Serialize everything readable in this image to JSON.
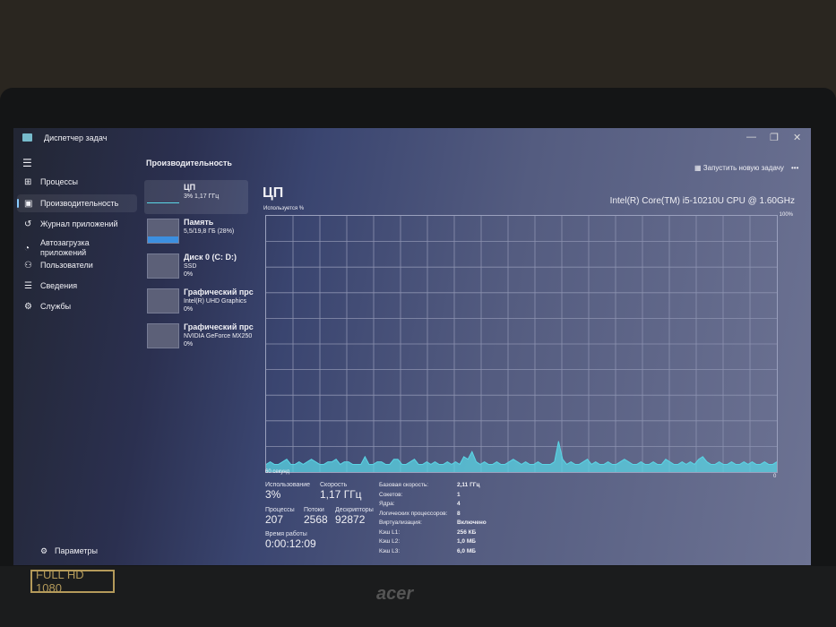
{
  "window": {
    "title": "Диспетчер задач",
    "minimize": "—",
    "maximize": "❐",
    "close": "✕"
  },
  "sidebar": {
    "menu_icon": "☰",
    "items": [
      {
        "label": "Процессы",
        "icon": "processes-icon"
      },
      {
        "label": "Производительность",
        "icon": "performance-icon",
        "active": true
      },
      {
        "label": "Журнал приложений",
        "icon": "history-icon"
      },
      {
        "label": "Автозагрузка приложений",
        "icon": "startup-icon"
      },
      {
        "label": "Пользователи",
        "icon": "users-icon"
      },
      {
        "label": "Сведения",
        "icon": "details-icon"
      },
      {
        "label": "Службы",
        "icon": "services-icon"
      }
    ],
    "settings": "Параметры"
  },
  "header": {
    "title": "Производительность",
    "run_task": "Запустить новую задачу",
    "more": "•••"
  },
  "cards": [
    {
      "name": "ЦП",
      "line1": "3% 1,17 ГГц",
      "line2": ""
    },
    {
      "name": "Память",
      "line1": "5,5/19,8 ГБ (28%)",
      "line2": "",
      "fill_percent": 28
    },
    {
      "name": "Диск 0 (C: D:)",
      "line1": "SSD",
      "line2": "0%"
    },
    {
      "name": "Графический прс",
      "line1": "Intel(R) UHD Graphics",
      "line2": "0%"
    },
    {
      "name": "Графический прс",
      "line1": "NVIDIA GeForce MX250",
      "line2": "0%"
    }
  ],
  "cpu": {
    "title": "ЦП",
    "model": "Intel(R) Core(TM) i5-10210U CPU @ 1.60GHz",
    "util_label": "Используется %",
    "max_label": "100%",
    "time_label": "60 секунд",
    "min_label": "0",
    "accent": "#5ad6e6",
    "history_percent": [
      3,
      4,
      3,
      3,
      4,
      5,
      3,
      3,
      4,
      3,
      4,
      5,
      4,
      3,
      3,
      4,
      4,
      5,
      3,
      4,
      4,
      3,
      3,
      3,
      6,
      3,
      3,
      4,
      4,
      3,
      3,
      5,
      5,
      3,
      3,
      4,
      5,
      3,
      3,
      4,
      3,
      4,
      3,
      3,
      4,
      3,
      4,
      3,
      6,
      5,
      8,
      4,
      3,
      4,
      3,
      3,
      4,
      3,
      3,
      4,
      5,
      4,
      3,
      4,
      3,
      3,
      4,
      3,
      3,
      3,
      4,
      12,
      5,
      3,
      4,
      3,
      3,
      4,
      5,
      3,
      4,
      3,
      3,
      4,
      3,
      3,
      4,
      5,
      4,
      3,
      3,
      4,
      3,
      3,
      4,
      3,
      3,
      5,
      4,
      3,
      3,
      4,
      3,
      4,
      3,
      5,
      6,
      4,
      3,
      3,
      4,
      3,
      3,
      4,
      3,
      3,
      4,
      3,
      4,
      3,
      3,
      4,
      3,
      3,
      4
    ],
    "stats": {
      "usage_label": "Использование",
      "usage": "3%",
      "speed_label": "Скорость",
      "speed": "1,17 ГГц",
      "processes_label": "Процессы",
      "processes": "207",
      "threads_label": "Потоки",
      "threads": "2568",
      "handles_label": "Дескрипторы",
      "handles": "92872",
      "uptime_label": "Время работы",
      "uptime": "0:00:12:09"
    },
    "details": [
      {
        "k": "Базовая скорость:",
        "v": "2,11 ГГц"
      },
      {
        "k": "Сокетов:",
        "v": "1"
      },
      {
        "k": "Ядра:",
        "v": "4"
      },
      {
        "k": "Логических процессоров:",
        "v": "8"
      },
      {
        "k": "Виртуализация:",
        "v": "Включено"
      },
      {
        "k": "Кэш L1:",
        "v": "256 КБ"
      },
      {
        "k": "Кэш L2:",
        "v": "1,0 МБ"
      },
      {
        "k": "Кэш L3:",
        "v": "6,0 МБ"
      }
    ]
  },
  "laptop": {
    "badge": "FULL HD 1080",
    "brand": "acer"
  }
}
